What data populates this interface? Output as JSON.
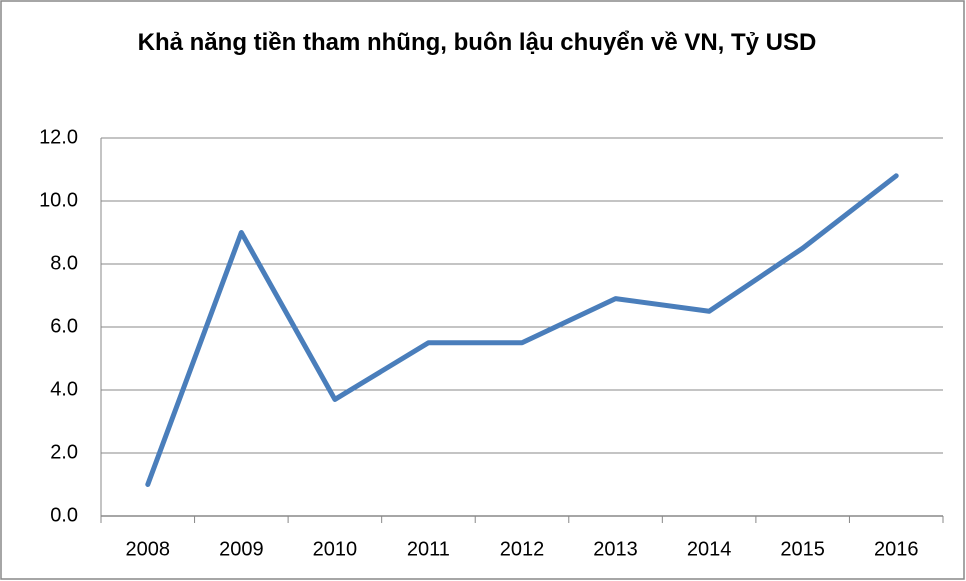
{
  "chart_data": {
    "type": "line",
    "title": "Khả năng tiền tham nhũng, buôn lậu chuyển về VN, Tỷ USD",
    "categories": [
      "2008",
      "2009",
      "2010",
      "2011",
      "2012",
      "2013",
      "2014",
      "2015",
      "2016"
    ],
    "series": [
      {
        "name": "Khả năng tiền tham nhũng, buôn lậu chuyển về VN",
        "color": "#4a7ebb",
        "values": [
          1.0,
          9.0,
          3.7,
          5.5,
          5.5,
          6.9,
          6.5,
          8.5,
          10.8
        ]
      }
    ],
    "ylim": [
      0,
      12
    ],
    "yticks": [
      {
        "value": 0,
        "label": "0.0"
      },
      {
        "value": 2,
        "label": "2.0"
      },
      {
        "value": 4,
        "label": "4.0"
      },
      {
        "value": 6,
        "label": "6.0"
      },
      {
        "value": 8,
        "label": "8.0"
      },
      {
        "value": 10,
        "label": "10.0"
      },
      {
        "value": 12,
        "label": "12.0"
      }
    ],
    "grid": true
  }
}
